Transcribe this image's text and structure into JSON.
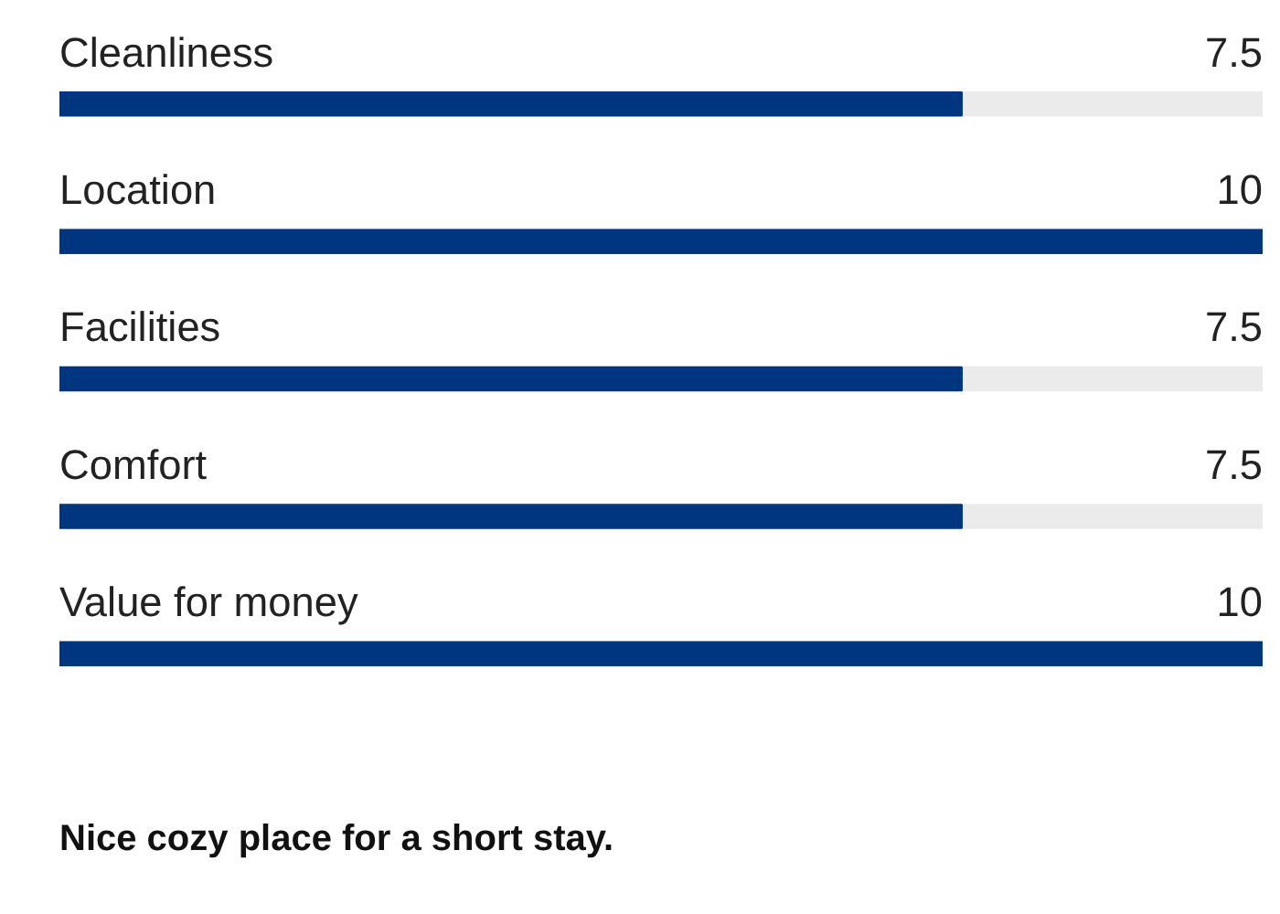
{
  "chart_data": {
    "type": "bar",
    "orientation": "horizontal",
    "categories": [
      "Cleanliness",
      "Location",
      "Facilities",
      "Comfort",
      "Value for money"
    ],
    "values": [
      7.5,
      10,
      7.5,
      7.5,
      10
    ],
    "color": "#003580",
    "xlim": [
      0,
      10
    ],
    "data_labels": true,
    "tick_labels": false,
    "grid": false,
    "annotations": [
      "Nice cozy place for a short stay."
    ]
  }
}
